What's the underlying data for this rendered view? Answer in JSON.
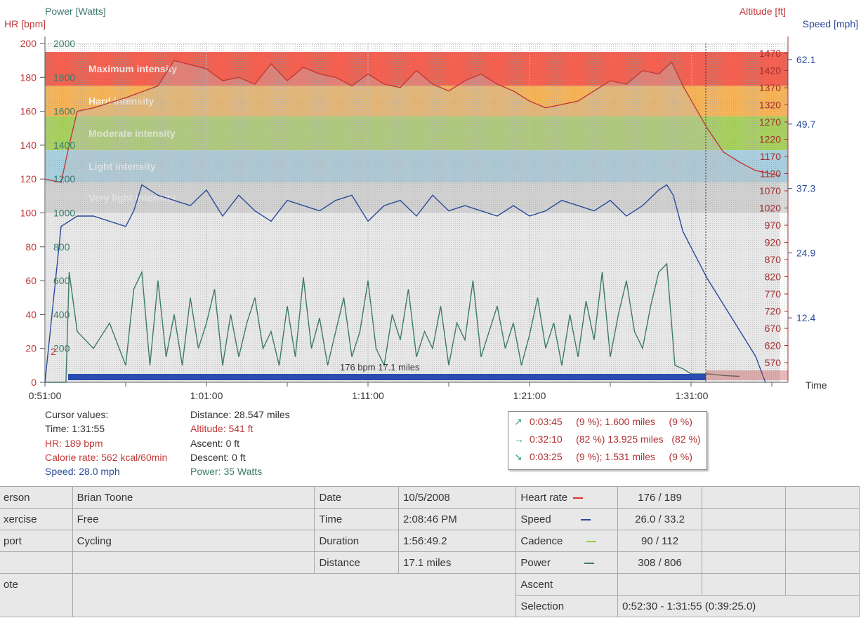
{
  "axes": {
    "hr_title": "HR [bpm]",
    "power_title": "Power [Watts]",
    "altitude_title": "Altitude [ft]",
    "speed_title": "Speed [mph]",
    "time_title": "Time",
    "hr_ticks": [
      "200",
      "180",
      "160",
      "140",
      "120",
      "100",
      "80",
      "60",
      "40",
      "20",
      "0"
    ],
    "power_ticks": [
      "2000",
      "1800",
      "1600",
      "1400",
      "1200",
      "1000",
      "800",
      "600",
      "400",
      "200"
    ],
    "altitude_ticks": [
      "1470",
      "1420",
      "1370",
      "1320",
      "1270",
      "1220",
      "1170",
      "1120",
      "1070",
      "1020",
      "970",
      "920",
      "870",
      "820",
      "770",
      "720",
      "670",
      "620",
      "570"
    ],
    "speed_ticks": [
      "62.1",
      "49.7",
      "37.3",
      "24.9",
      "12.4"
    ],
    "time_ticks": [
      "0:51:00",
      "1:01:00",
      "1:11:00",
      "1:21:00",
      "1:31:00"
    ]
  },
  "zones": [
    {
      "label": "Maximum intensity",
      "color": "#f06050"
    },
    {
      "label": "Hard intensity",
      "color": "#f5b45a"
    },
    {
      "label": "Moderate intensity",
      "color": "#a8d060"
    },
    {
      "label": "Light intensity",
      "color": "#a8d0e0"
    },
    {
      "label": "Very light intensity",
      "color": "#dcdcdc"
    }
  ],
  "chart_data": {
    "type": "line",
    "x_range": [
      "0:51:00",
      "1:36:30"
    ],
    "y_left_range": [
      0,
      200
    ],
    "series": [
      {
        "name": "Heart rate",
        "axis": "hr",
        "color": "#c03a3a",
        "x_min": [
          0,
          1,
          1.5,
          2,
          3,
          5,
          7,
          8,
          10,
          11,
          12,
          13,
          14,
          15,
          16,
          17,
          18,
          19,
          20,
          21,
          22,
          23,
          24,
          25,
          26,
          27,
          28,
          29,
          30,
          31,
          32,
          33,
          34,
          35,
          36,
          37,
          38,
          38.8,
          39.5,
          41,
          42,
          43,
          44,
          45.5
        ],
        "values": [
          120,
          118,
          140,
          160,
          162,
          168,
          175,
          190,
          185,
          178,
          180,
          176,
          188,
          178,
          186,
          182,
          180,
          175,
          182,
          176,
          174,
          184,
          176,
          172,
          178,
          182,
          176,
          172,
          166,
          162,
          164,
          166,
          172,
          178,
          176,
          184,
          182,
          189,
          175,
          150,
          136,
          130,
          125,
          122
        ]
      },
      {
        "name": "Speed",
        "axis": "speed",
        "color": "#2a4b9a",
        "x_min": [
          0,
          1,
          2,
          3,
          4,
          5,
          5.5,
          6,
          7,
          8,
          9,
          10,
          11,
          12,
          13,
          14,
          15,
          16,
          17,
          18,
          19,
          20,
          21,
          22,
          23,
          24,
          25,
          26,
          27,
          28,
          29,
          30,
          31,
          32,
          33,
          34,
          35,
          36,
          37,
          38,
          38.5,
          38.9,
          39.5,
          41,
          42,
          43,
          44,
          44.6
        ],
        "values": [
          0,
          30,
          32,
          32,
          31,
          30,
          33,
          38,
          36,
          35,
          34,
          37,
          32,
          36,
          33,
          31,
          35,
          34,
          33,
          35,
          36,
          31,
          34,
          35,
          32,
          36,
          33,
          34,
          33,
          32,
          34,
          32,
          33,
          35,
          34,
          33,
          35,
          32,
          34,
          37,
          38,
          36,
          29,
          20,
          15,
          10,
          5,
          0
        ]
      },
      {
        "name": "Power",
        "axis": "power",
        "color": "#3c7a6c",
        "x_min": [
          0,
          1.3,
          1.5,
          2,
          3,
          4,
          5,
          5.5,
          6,
          6.5,
          7,
          7.5,
          8,
          8.5,
          9,
          9.5,
          10,
          10.5,
          11,
          11.5,
          12,
          12.5,
          13,
          13.5,
          14,
          14.5,
          15,
          15.5,
          16,
          16.5,
          17,
          17.5,
          18,
          18.5,
          19,
          19.5,
          20,
          20.5,
          21,
          21.5,
          22,
          22.5,
          23,
          23.5,
          24,
          24.5,
          25,
          25.5,
          26,
          26.5,
          27,
          27.5,
          28,
          28.5,
          29,
          29.5,
          30,
          30.5,
          31,
          31.5,
          32,
          32.5,
          33,
          33.5,
          34,
          34.5,
          35,
          35.5,
          36,
          36.5,
          37,
          37.5,
          38,
          38.5,
          39,
          39.5,
          40,
          41,
          42,
          43
        ],
        "values": [
          0,
          0,
          650,
          300,
          200,
          350,
          100,
          550,
          650,
          100,
          600,
          150,
          400,
          100,
          500,
          200,
          350,
          550,
          100,
          400,
          150,
          350,
          500,
          200,
          300,
          100,
          450,
          150,
          620,
          200,
          380,
          100,
          300,
          500,
          150,
          300,
          600,
          200,
          100,
          400,
          250,
          550,
          150,
          300,
          200,
          450,
          100,
          350,
          250,
          600,
          150,
          300,
          450,
          200,
          350,
          100,
          280,
          500,
          200,
          350,
          100,
          400,
          150,
          480,
          250,
          650,
          150,
          400,
          600,
          300,
          200,
          450,
          650,
          700,
          100,
          80,
          50,
          50,
          40,
          35
        ]
      }
    ]
  },
  "chart_text": {
    "bottom_label": "176 bpm   17.1 miles",
    "hr_marker": "2"
  },
  "cursor": {
    "title": "Cursor values:",
    "time": "Time: 1:31:55",
    "hr": "HR: 189 bpm",
    "calorie": "Calorie rate: 562 kcal/60min",
    "speed": "Speed: 28.0 mph",
    "distance": "Distance: 28.547 miles",
    "altitude": "Altitude: 541 ft",
    "ascent": "Ascent: 0 ft",
    "descent": "Descent: 0 ft",
    "power": "Power: 35 Watts"
  },
  "segments": [
    {
      "arrow": "↗",
      "time": "0:03:45",
      "pct1": "(9 %)",
      "dist": "1.600 miles",
      "pct2": "(9 %)"
    },
    {
      "arrow": "→",
      "time": "0:32:10",
      "pct1": "(82 %)",
      "dist": "13.925 miles",
      "pct2": "(82 %)"
    },
    {
      "arrow": "↘",
      "time": "0:03:25",
      "pct1": "(9 %)",
      "dist": "1.531 miles",
      "pct2": "(9 %)"
    }
  ],
  "summary": {
    "person_label": "erson",
    "person": "Brian Toone",
    "exercise_label": "xercise",
    "exercise": "Free",
    "sport_label": "port",
    "sport": "Cycling",
    "note_label": "ote",
    "date_label": "Date",
    "date": "10/5/2008",
    "time_label": "Time",
    "time": "2:08:46 PM",
    "duration_label": "Duration",
    "duration": "1:56:49.2",
    "distance_label": "Distance",
    "distance": "17.1 miles",
    "hr_label": "Heart rate",
    "hr": "176 / 189",
    "hr_color": "#e03030",
    "speed_label": "Speed",
    "speed": "26.0 / 33.2",
    "speed_color": "#2a4b9a",
    "cadence_label": "Cadence",
    "cadence": "90 / 112",
    "cadence_color": "#90d040",
    "power_label": "Power",
    "power": "308 / 806",
    "power_color": "#3c7a6c",
    "ascent_label": "Ascent",
    "selection_label": "Selection",
    "selection": "0:52:30 - 1:31:55 (0:39:25.0)"
  }
}
